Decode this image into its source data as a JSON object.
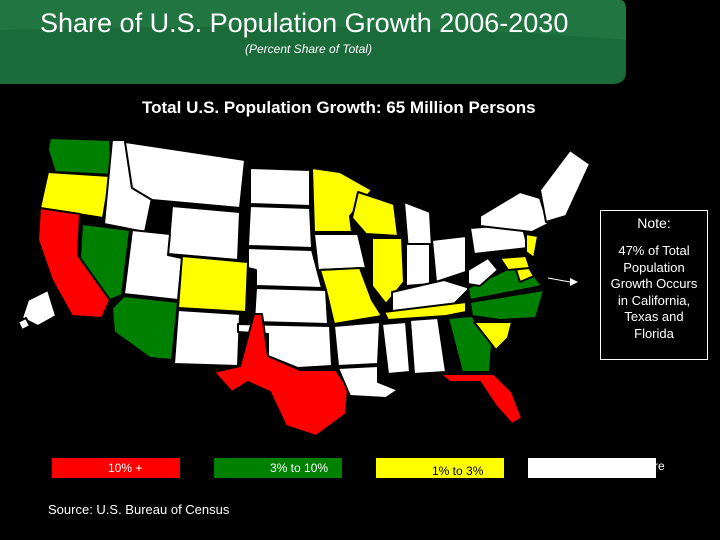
{
  "header": {
    "title": "Share of U.S. Population Growth 2006-2030",
    "subtitle": "(Percent Share of Total)",
    "banner_color": "#1a6a3a"
  },
  "map": {
    "heading": "Total U.S. Population Growth: 65 Million Persons",
    "states_10_plus": [
      "CA",
      "TX",
      "FL"
    ],
    "states_3_to_10": [
      "WA",
      "NV",
      "AZ",
      "GA",
      "NC"
    ],
    "states_1_to_3": [
      "OR",
      "CO",
      "MN",
      "WI",
      "MO",
      "IL",
      "TN",
      "SC",
      "NJ",
      "MD",
      "VA-coast"
    ]
  },
  "note": {
    "title": "Note:",
    "body": "47% of Total Population Growth Occurs in California, Texas and Florida"
  },
  "legend": {
    "items": [
      {
        "label": "10% +",
        "color": "#ff0000"
      },
      {
        "label": "3% to 10%",
        "color": "#008000"
      },
      {
        "label": "1% to 3%",
        "color": "#ffff00"
      },
      {
        "label": "0% to 1% Share",
        "color": "#ffffff"
      }
    ]
  },
  "source": "Source: U.S. Bureau of Census"
}
